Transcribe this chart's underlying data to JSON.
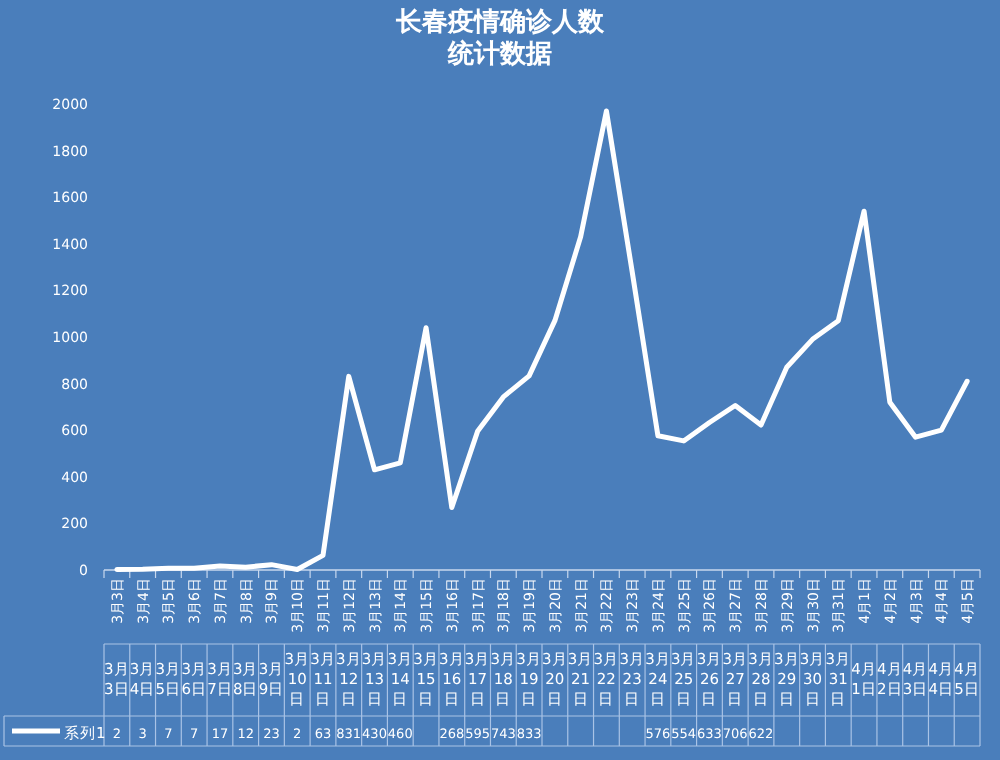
{
  "chart_data": {
    "type": "line",
    "title": "长春疫情确诊人数统计数据",
    "categories": [
      "3月3日",
      "3月4日",
      "3月5日",
      "3月6日",
      "3月7日",
      "3月8日",
      "3月9日",
      "3月10日",
      "3月11日",
      "3月12日",
      "3月13日",
      "3月14日",
      "3月15日",
      "3月16日",
      "3月17日",
      "3月18日",
      "3月19日",
      "3月20日",
      "3月21日",
      "3月22日",
      "3月23日",
      "3月24日",
      "3月25日",
      "3月26日",
      "3月27日",
      "3月28日",
      "3月29日",
      "3月30日",
      "3月31日",
      "4月1日",
      "4月2日",
      "4月3日",
      "4月4日",
      "4月5日"
    ],
    "series": [
      {
        "name": "系列1",
        "color": "#ffffff",
        "values": [
          2,
          3,
          7,
          7,
          17,
          12,
          23,
          2,
          63,
          831,
          430,
          460,
          1040,
          268,
          595,
          743,
          833,
          1070,
          1430,
          1970,
          1280,
          576,
          554,
          633,
          706,
          622,
          870,
          990,
          1070,
          1540,
          720,
          570,
          600,
          810
        ],
        "value_labels": [
          "2",
          "3",
          "7",
          "7",
          "17",
          "12",
          "23",
          "2",
          "63",
          "831",
          "430",
          "460",
          null,
          "268",
          "595",
          "743",
          "833",
          null,
          null,
          null,
          null,
          "576",
          "554",
          "633",
          "706",
          "622",
          null,
          null,
          null,
          null,
          null,
          null,
          null,
          null
        ]
      }
    ],
    "ylim": [
      0,
      2000
    ],
    "yticks": [
      0,
      200,
      400,
      600,
      800,
      1000,
      1200,
      1400,
      1600,
      1800,
      2000
    ],
    "marker": "none",
    "line_style": "solid",
    "grid": false,
    "legend": "bottom"
  }
}
